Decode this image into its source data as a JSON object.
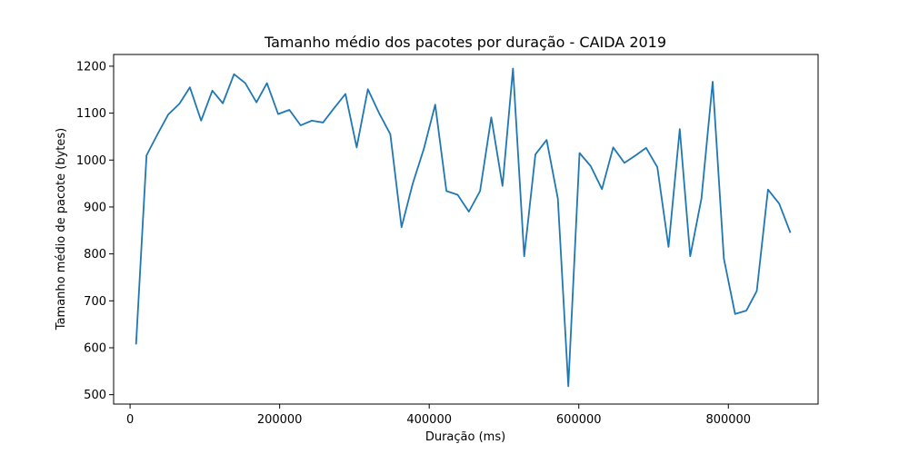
{
  "chart_data": {
    "type": "line",
    "title": "Tamanho médio dos pacotes por duração - CAIDA 2019",
    "xlabel": "Duração (ms)",
    "ylabel": "Tamanho médio de pacote (bytes)",
    "xlim": [
      -22000,
      920000
    ],
    "ylim": [
      480,
      1225
    ],
    "xticks": [
      0,
      200000,
      400000,
      600000,
      800000
    ],
    "xtick_labels": [
      "0",
      "200000",
      "400000",
      "600000",
      "800000"
    ],
    "yticks": [
      500,
      600,
      700,
      800,
      900,
      1000,
      1100,
      1200
    ],
    "ytick_labels": [
      "500",
      "600",
      "700",
      "800",
      "900",
      "1000",
      "1100",
      "1200"
    ],
    "grid": false,
    "colors": {
      "line": "#1f77b4"
    },
    "series": [
      {
        "x": [
          8000,
          22000,
          36000,
          51000,
          66000,
          80000,
          95000,
          110000,
          124000,
          139000,
          154000,
          169000,
          183000,
          198000,
          213000,
          228000,
          243000,
          258000,
          272000,
          288000,
          303000,
          318000,
          333000,
          348000,
          363000,
          378000,
          393000,
          408000,
          423000,
          438000,
          453000,
          468000,
          483000,
          498000,
          512000,
          527000,
          542000,
          557000,
          572000,
          586000,
          601000,
          616000,
          631000,
          646000,
          661000,
          676000,
          690000,
          705000,
          720000,
          735000,
          749000,
          764000,
          779000,
          794000,
          809000,
          824000,
          838000,
          853000,
          868000,
          883000
        ],
        "values": [
          607,
          1010,
          1053,
          1097,
          1120,
          1155,
          1084,
          1148,
          1121,
          1183,
          1164,
          1123,
          1164,
          1098,
          1107,
          1074,
          1084,
          1080,
          1109,
          1141,
          1027,
          1151,
          1100,
          1055,
          857,
          950,
          1025,
          1118,
          934,
          926,
          890,
          934,
          1091,
          945,
          1195,
          795,
          1012,
          1043,
          918,
          518,
          1015,
          987,
          938,
          1027,
          994,
          1010,
          1026,
          985,
          815,
          1066,
          795,
          918,
          1167,
          790,
          672,
          679,
          721,
          937,
          907,
          845
        ]
      }
    ]
  }
}
